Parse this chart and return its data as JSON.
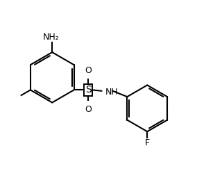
{
  "bg_color": "#ffffff",
  "bond_color": "#000000",
  "text_color": "#000000",
  "label_NH2": "NH₂",
  "label_S": "S",
  "label_O_top": "O",
  "label_O_bot": "O",
  "label_NH": "NH",
  "label_F": "F",
  "line_width": 1.5,
  "figsize": [
    2.84,
    2.56
  ],
  "dpi": 100,
  "xlim": [
    0,
    10
  ],
  "ylim": [
    0,
    9
  ]
}
